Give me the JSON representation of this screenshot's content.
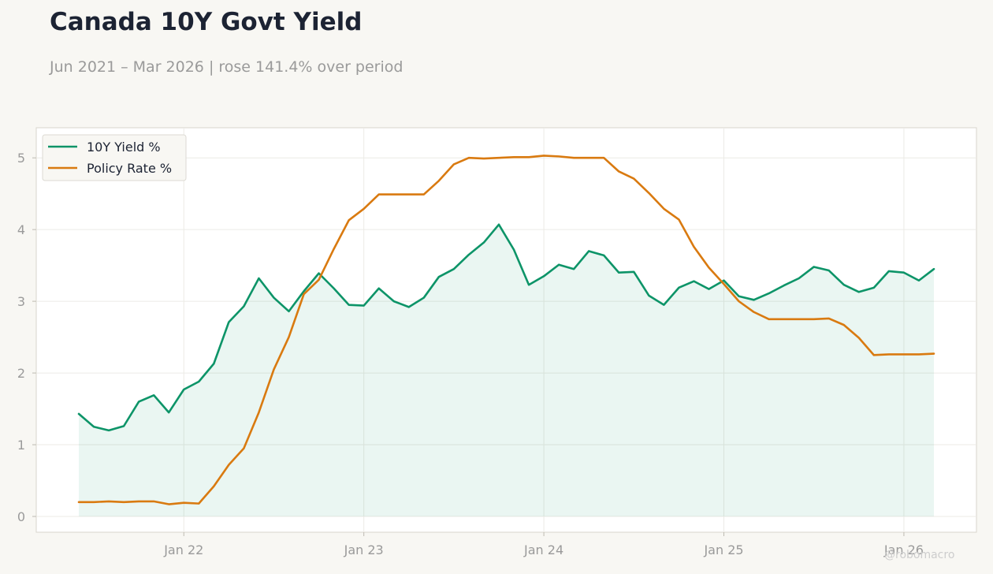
{
  "header": {
    "title": "Canada 10Y Govt Yield",
    "subtitle": "Jun 2021 – Mar 2026 | rose 141.4% over period"
  },
  "watermark": "@robomacro",
  "chart_data": {
    "type": "line",
    "title": "Canada 10Y Govt Yield",
    "subtitle": "Jun 2021 – Mar 2026 | rose 141.4% over period",
    "xlabel": "",
    "ylabel": "",
    "x": [
      "2021-06",
      "2021-07",
      "2021-08",
      "2021-09",
      "2021-10",
      "2021-11",
      "2021-12",
      "2022-01",
      "2022-02",
      "2022-03",
      "2022-04",
      "2022-05",
      "2022-06",
      "2022-07",
      "2022-08",
      "2022-09",
      "2022-10",
      "2022-11",
      "2022-12",
      "2023-01",
      "2023-02",
      "2023-03",
      "2023-04",
      "2023-05",
      "2023-06",
      "2023-07",
      "2023-08",
      "2023-09",
      "2023-10",
      "2023-11",
      "2023-12",
      "2024-01",
      "2024-02",
      "2024-03",
      "2024-04",
      "2024-05",
      "2024-06",
      "2024-07",
      "2024-08",
      "2024-09",
      "2024-10",
      "2024-11",
      "2024-12",
      "2025-01",
      "2025-02",
      "2025-03",
      "2025-04",
      "2025-05",
      "2025-06",
      "2025-07",
      "2025-08",
      "2025-09",
      "2025-10",
      "2025-11",
      "2025-12",
      "2026-01",
      "2026-02",
      "2026-03"
    ],
    "x_ticks": [
      "Jan 22",
      "Jan 23",
      "Jan 24",
      "Jan 25",
      "Jan 26"
    ],
    "x_tick_positions": [
      "2022-01",
      "2023-01",
      "2024-01",
      "2025-01",
      "2026-01"
    ],
    "ylim": [
      -0.22,
      5.42
    ],
    "y_ticks": [
      0,
      1,
      2,
      3,
      4,
      5
    ],
    "grid": true,
    "legend": "top-left",
    "series": [
      {
        "name": "10Y Yield %",
        "color": "#0d9468",
        "fill": true,
        "values": [
          1.43,
          1.25,
          1.2,
          1.26,
          1.6,
          1.69,
          1.45,
          1.77,
          1.88,
          2.13,
          2.71,
          2.93,
          3.32,
          3.05,
          2.86,
          3.14,
          3.39,
          3.18,
          2.95,
          2.94,
          3.18,
          3.0,
          2.92,
          3.05,
          3.34,
          3.45,
          3.65,
          3.82,
          4.07,
          3.72,
          3.23,
          3.35,
          3.51,
          3.45,
          3.7,
          3.64,
          3.4,
          3.41,
          3.08,
          2.95,
          3.19,
          3.28,
          3.17,
          3.29,
          3.07,
          3.02,
          3.11,
          3.22,
          3.32,
          3.48,
          3.43,
          3.23,
          3.13,
          3.19,
          3.42,
          3.4,
          3.29,
          3.45
        ]
      },
      {
        "name": "Policy Rate %",
        "color": "#d97a10",
        "fill": false,
        "values": [
          0.2,
          0.2,
          0.21,
          0.2,
          0.21,
          0.21,
          0.17,
          0.19,
          0.18,
          0.42,
          0.72,
          0.95,
          1.45,
          2.05,
          2.5,
          3.1,
          3.3,
          3.73,
          4.13,
          4.29,
          4.49,
          4.49,
          4.49,
          4.49,
          4.68,
          4.91,
          5.0,
          4.99,
          5.0,
          5.01,
          5.01,
          5.03,
          5.02,
          5.0,
          5.0,
          5.0,
          4.81,
          4.71,
          4.51,
          4.29,
          4.14,
          3.76,
          3.47,
          3.24,
          3.0,
          2.85,
          2.75,
          2.75,
          2.75,
          2.75,
          2.76,
          2.67,
          2.49,
          2.25,
          2.26,
          2.26,
          2.26,
          2.27
        ]
      }
    ]
  }
}
